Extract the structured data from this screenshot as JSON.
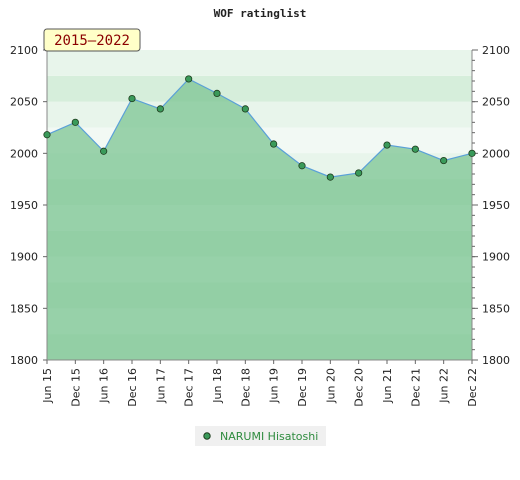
{
  "chart_data": {
    "type": "area",
    "title": "WOF ratinglist",
    "period_badge": "2015–2022",
    "x": [
      "Jun 15",
      "Dec 15",
      "Jun 16",
      "Dec 16",
      "Jun 17",
      "Dec 17",
      "Jun 18",
      "Dec 18",
      "Jun 19",
      "Dec 19",
      "Jun 20",
      "Dec 20",
      "Jun 21",
      "Dec 21",
      "Jun 22",
      "Dec 22"
    ],
    "series": [
      {
        "name": "NARUMI Hisatoshi",
        "values": [
          2018,
          2030,
          2002,
          2053,
          2043,
          2072,
          2058,
          2043,
          2009,
          1988,
          1977,
          1981,
          2008,
          2004,
          1993,
          2000
        ]
      }
    ],
    "ylim": [
      1800,
      2100
    ],
    "yticks": [
      1800,
      1850,
      1900,
      1950,
      2000,
      2050,
      2100
    ],
    "ytick_labels": [
      "1800",
      "1850",
      "1900",
      "1950",
      "2000",
      "2050",
      "2100"
    ],
    "grid": true,
    "legend_position": "bottom-center",
    "colors": {
      "line": "#5aa0d8",
      "fill": "#7cc493",
      "marker": "#3a9a5a",
      "marker_stroke": "#1e3d1e",
      "badge_bg": "#ffffc8"
    }
  }
}
